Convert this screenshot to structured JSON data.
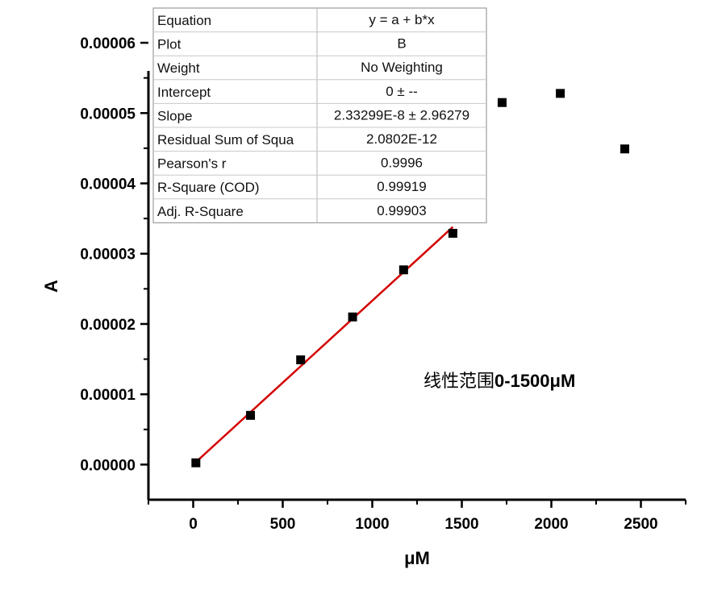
{
  "chart_data": {
    "type": "scatter",
    "xlabel": "μM",
    "ylabel": "A",
    "xlim": [
      -250,
      2750
    ],
    "ylim": [
      -5e-06,
      6.15e-05
    ],
    "x_ticks": [
      "0",
      "500",
      "1000",
      "1500",
      "2000",
      "2500"
    ],
    "x_tick_values": [
      0,
      500,
      1000,
      1500,
      2000,
      2500
    ],
    "y_ticks": [
      "0.00000",
      "0.00001",
      "0.00002",
      "0.00003",
      "0.00004",
      "0.00005",
      "0.00006"
    ],
    "y_tick_values": [
      0,
      1e-05,
      2e-05,
      3e-05,
      4e-05,
      5e-05,
      6e-05
    ],
    "series": [
      {
        "color": "#000000",
        "marker": "square",
        "x": [
          15,
          320,
          600,
          890,
          1175,
          1450,
          1725,
          2050,
          2410
        ],
        "y": [
          2.5e-07,
          7e-06,
          1.49e-05,
          2.1e-05,
          2.77e-05,
          3.29e-05,
          5.15e-05,
          5.28e-05,
          4.49e-05
        ]
      }
    ],
    "fit_line": {
      "color": "#d40000",
      "x": [
        0,
        1450
      ],
      "y": [
        0,
        3.38e-05
      ]
    },
    "annotation": {
      "prefix": "线性范围",
      "suffix": "0-1500μM"
    },
    "fit_table": [
      {
        "label": "Equation",
        "value": "y = a + b*x"
      },
      {
        "label": "Plot",
        "value": "B"
      },
      {
        "label": "Weight",
        "value": "No Weighting"
      },
      {
        "label": "Intercept",
        "value": "0 ± --"
      },
      {
        "label": "Slope",
        "value": "2.33299E-8 ± 2.96279"
      },
      {
        "label": "Residual Sum of Squa",
        "value": "2.0802E-12"
      },
      {
        "label": "Pearson's r",
        "value": "0.9996"
      },
      {
        "label": "R-Square (COD)",
        "value": "0.99919"
      },
      {
        "label": "Adj. R-Square",
        "value": "0.99903"
      }
    ]
  }
}
